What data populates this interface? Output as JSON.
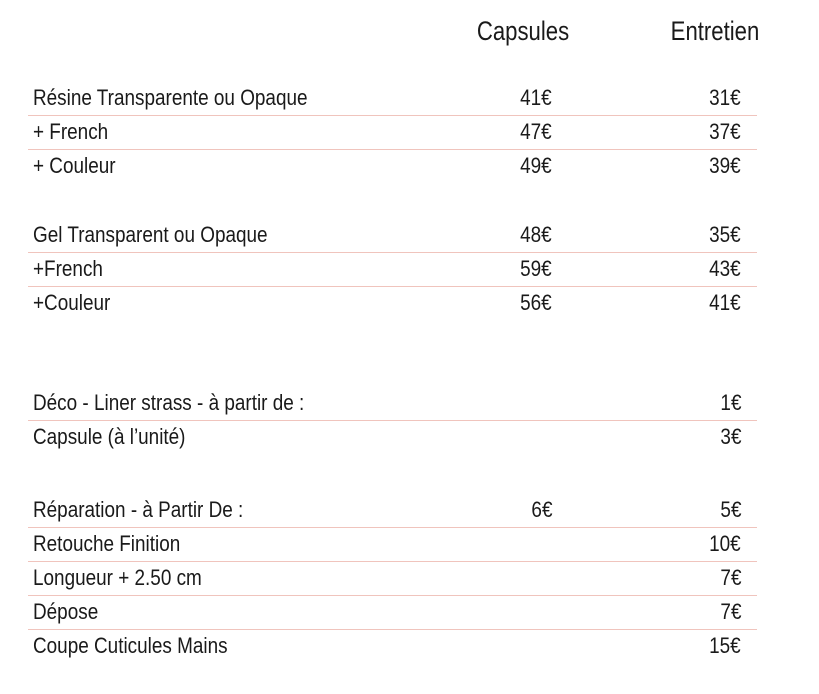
{
  "header": {
    "capsules": "Capsules",
    "entretien": "Entretien"
  },
  "groups": [
    {
      "rows": [
        {
          "label": "Résine Transparente ou Opaque",
          "capsules": "41€",
          "entretien": "31€"
        },
        {
          "label": "+ French",
          "capsules": "47€",
          "entretien": "37€"
        },
        {
          "label": "+ Couleur",
          "capsules": "49€",
          "entretien": "39€"
        }
      ]
    },
    {
      "rows": [
        {
          "label": "Gel Transparent ou Opaque",
          "capsules": "48€",
          "entretien": "35€"
        },
        {
          "label": "+French",
          "capsules": "59€",
          "entretien": "43€"
        },
        {
          "label": "+Couleur",
          "capsules": "56€",
          "entretien": "41€"
        }
      ]
    },
    {
      "rows": [
        {
          "label": "Déco - Liner strass - à partir de :",
          "entretien": "1€"
        },
        {
          "label": "Capsule (à l’unité)",
          "entretien": "3€"
        }
      ]
    },
    {
      "rows": [
        {
          "label": "Réparation - à Partir De :",
          "capsules": "6€",
          "entretien": "5€"
        },
        {
          "label": "Retouche Finition",
          "entretien": "10€"
        },
        {
          "label": "Longueur + 2.50 cm",
          "entretien": "7€"
        },
        {
          "label": "Dépose",
          "entretien": "7€"
        },
        {
          "label": "Coupe Cuticules Mains",
          "entretien": "15€"
        }
      ]
    }
  ]
}
